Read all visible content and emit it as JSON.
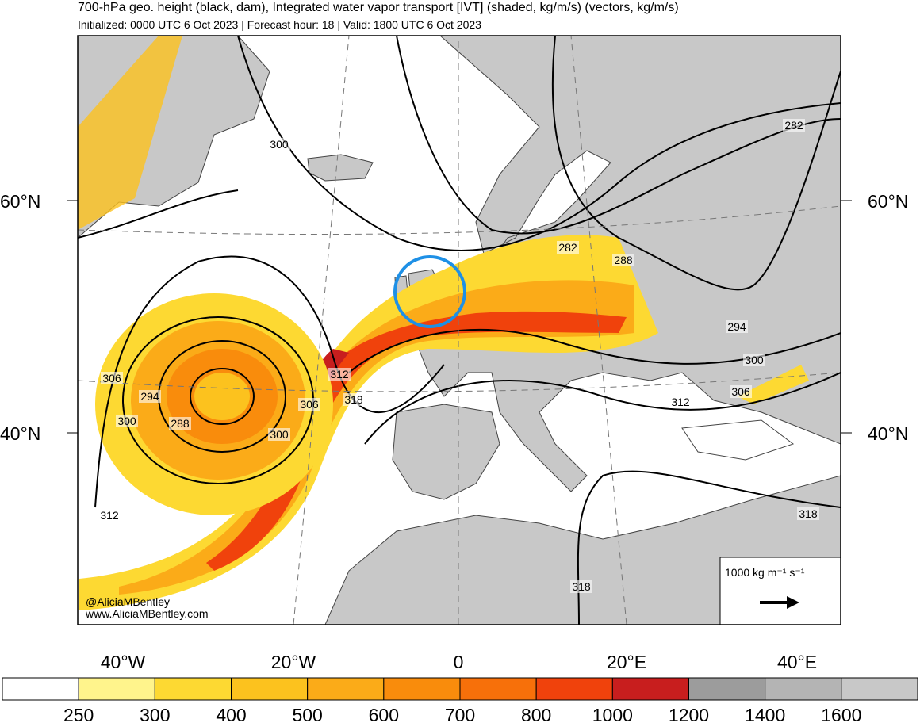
{
  "header": {
    "title": "700-hPa geo. height (black, dam), Integrated water vapor transport [IVT] (shaded, kg/m/s) (vectors, kg/m/s)",
    "subtitle": "Initialized: 0000 UTC 6 Oct 2023 | Forecast hour: 18 | Valid: 1800 UTC 6 Oct 2023"
  },
  "map": {
    "lat_labels": [
      "60°N",
      "40°N"
    ],
    "lon_labels": [
      "40°W",
      "20°W",
      "0",
      "20°E",
      "40°E"
    ],
    "contour_labels": [
      "300",
      "306",
      "294",
      "300",
      "288",
      "312",
      "312",
      "306",
      "318",
      "300",
      "282",
      "288",
      "294",
      "300",
      "306",
      "312",
      "282",
      "318",
      "318"
    ],
    "credit": [
      "@AliciaMBentley",
      "www.AliciaMBentley.com"
    ],
    "vector_legend": "1000 kg m⁻¹ s⁻¹",
    "highlight_color": "#1e90e6"
  },
  "colorbar": {
    "labels": [
      250,
      300,
      400,
      500,
      600,
      700,
      800,
      1000,
      1200,
      1400,
      1600
    ],
    "colors": [
      "#ffffff",
      "#fff48c",
      "#fdd932",
      "#fcc21e",
      "#fbab18",
      "#f98c0c",
      "#f7700a",
      "#f0420c",
      "#c81e1e",
      "#9c9c9c",
      "#b4b4b4",
      "#c8c8c8"
    ]
  }
}
